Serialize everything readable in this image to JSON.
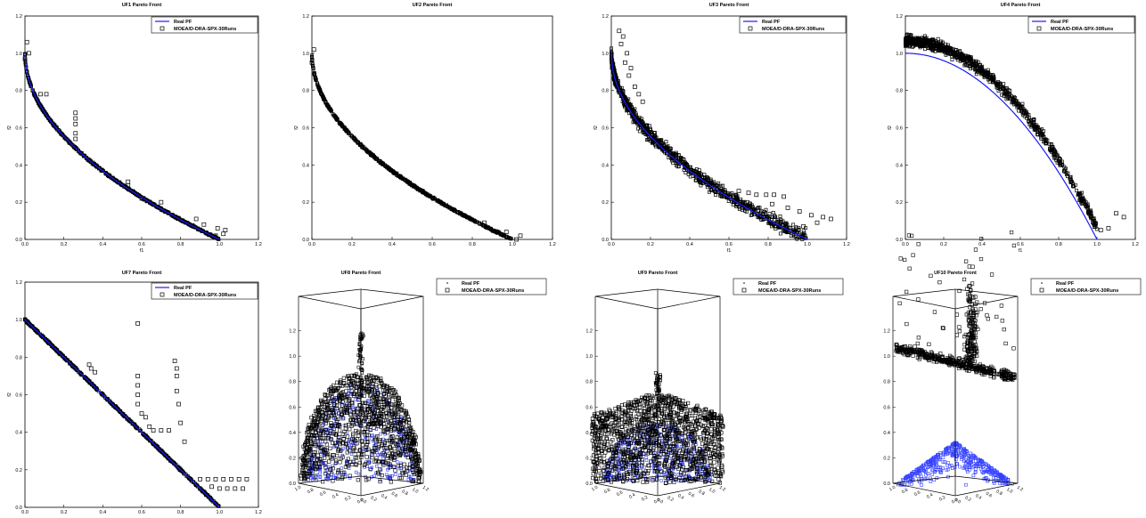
{
  "figure": {
    "legend": {
      "real": "Real PF",
      "moea": "MOEA/D-DRA-SPX-30Runs"
    },
    "colors": {
      "real": "#1a1aff",
      "moea": "#000000",
      "axis": "#000000",
      "surface": "#3340ff"
    }
  },
  "chart_data": [
    {
      "id": "UF1",
      "type": "scatter",
      "title": "UF1 Pareto Front",
      "xlabel": "f1",
      "ylabel": "f2",
      "xlim": [
        0,
        1.2
      ],
      "ylim": [
        0,
        1.2
      ],
      "xticks": [
        "0.0",
        "0.2",
        "0.4",
        "0.6",
        "0.8",
        "1.0",
        "1.2"
      ],
      "yticks": [
        "0.0",
        "0.2",
        "0.4",
        "0.6",
        "0.8",
        "1.0",
        "1.2"
      ],
      "legend_position": "top-right",
      "series": [
        {
          "name": "Real PF",
          "kind": "line",
          "formula": "f2 = 1 - sqrt(f1)"
        },
        {
          "name": "MOEA/D-DRA-SPX-30Runs",
          "kind": "markers",
          "main_front": "f2 = 1 - sqrt(f1)",
          "outliers": [
            [
              0.01,
              1.06
            ],
            [
              0.02,
              1.0
            ],
            [
              0.0,
              0.97
            ],
            [
              0.08,
              0.78
            ],
            [
              0.11,
              0.78
            ],
            [
              0.26,
              0.68
            ],
            [
              0.26,
              0.65
            ],
            [
              0.26,
              0.62
            ],
            [
              0.26,
              0.57
            ],
            [
              0.26,
              0.54
            ],
            [
              0.53,
              0.31
            ],
            [
              0.53,
              0.29
            ],
            [
              0.6,
              0.22
            ],
            [
              0.7,
              0.2
            ],
            [
              0.88,
              0.11
            ],
            [
              0.92,
              0.08
            ],
            [
              0.99,
              0.06
            ],
            [
              1.03,
              0.05
            ],
            [
              1.02,
              0.03
            ],
            [
              0.98,
              0.02
            ]
          ]
        }
      ]
    },
    {
      "id": "UF2",
      "type": "scatter",
      "title": "UF2 Pareto Front",
      "xlabel": "",
      "ylabel": "f2",
      "xlim": [
        0,
        1.2
      ],
      "ylim": [
        0,
        1.2
      ],
      "xticks": [
        "0.0",
        "0.2",
        "0.4",
        "0.6",
        "0.8",
        "1.0",
        "1.2"
      ],
      "yticks": [
        "0.0",
        "0.2",
        "0.4",
        "0.6",
        "0.8",
        "1.0",
        "1.2"
      ],
      "legend_position": "none",
      "series": [
        {
          "name": "MOEA/D-DRA-SPX-30Runs",
          "kind": "markers",
          "main_front": "f2 = 1 - sqrt(f1)",
          "outliers": [
            [
              0.01,
              1.02
            ],
            [
              0.0,
              0.95
            ],
            [
              0.74,
              0.14
            ],
            [
              0.86,
              0.09
            ],
            [
              0.97,
              0.04
            ],
            [
              1.04,
              0.02
            ],
            [
              1.02,
              0.0
            ]
          ]
        }
      ]
    },
    {
      "id": "UF3",
      "type": "scatter",
      "title": "UF3 Pareto Front",
      "xlabel": "f1",
      "ylabel": "f2",
      "xlim": [
        0,
        1.2
      ],
      "ylim": [
        0,
        1.2
      ],
      "xticks": [
        "0.0",
        "0.2",
        "0.4",
        "0.6",
        "0.8",
        "1.0",
        "1.2"
      ],
      "yticks": [
        "0.0",
        "0.2",
        "0.4",
        "0.6",
        "0.8",
        "1.0",
        "1.2"
      ],
      "legend_position": "top-right",
      "series": [
        {
          "name": "Real PF",
          "kind": "line",
          "formula": "f2 = 1 - sqrt(f1)"
        },
        {
          "name": "MOEA/D-DRA-SPX-30Runs",
          "kind": "markers",
          "main_front": "f2 = 1 - sqrt(f1)",
          "spread": 0.05,
          "outliers": [
            [
              0.04,
              1.12
            ],
            [
              0.06,
              1.09
            ],
            [
              0.05,
              1.05
            ],
            [
              0.08,
              1.0
            ],
            [
              0.07,
              0.95
            ],
            [
              0.1,
              0.92
            ],
            [
              0.09,
              0.88
            ],
            [
              0.12,
              0.82
            ],
            [
              0.14,
              0.78
            ],
            [
              0.16,
              0.74
            ],
            [
              0.65,
              0.26
            ],
            [
              0.7,
              0.25
            ],
            [
              0.74,
              0.24
            ],
            [
              0.79,
              0.24
            ],
            [
              0.83,
              0.24
            ],
            [
              0.88,
              0.23
            ],
            [
              0.82,
              0.19
            ],
            [
              0.9,
              0.17
            ],
            [
              0.96,
              0.15
            ],
            [
              1.02,
              0.13
            ],
            [
              1.08,
              0.12
            ],
            [
              1.12,
              0.11
            ],
            [
              1.05,
              0.09
            ],
            [
              0.98,
              0.07
            ]
          ]
        }
      ]
    },
    {
      "id": "UF4",
      "type": "scatter",
      "title": "UF4 Pareto Front",
      "xlabel": "f1",
      "ylabel": "f2",
      "xlim": [
        0,
        1.2
      ],
      "ylim": [
        0,
        1.2
      ],
      "xticks": [
        "0.0",
        "0.2",
        "0.4",
        "0.6",
        "0.8",
        "1.0",
        "1.2"
      ],
      "yticks": [
        "0.0",
        "0.2",
        "0.4",
        "0.6",
        "0.8",
        "1.0",
        "1.2"
      ],
      "legend_position": "top-right",
      "series": [
        {
          "name": "Real PF",
          "kind": "line",
          "formula": "f2 = 1 - f1^2"
        },
        {
          "name": "MOEA/D-DRA-SPX-30Runs",
          "kind": "markers",
          "main_front": "f2 = 1.06 - f1^2 (approx.)",
          "spread": 0.04,
          "outliers": [
            [
              0.05,
              1.05
            ],
            [
              0.08,
              1.07
            ],
            [
              0.1,
              1.08
            ],
            [
              1.02,
              0.05
            ],
            [
              1.06,
              0.06
            ],
            [
              1.1,
              0.14
            ],
            [
              1.14,
              0.12
            ]
          ]
        }
      ]
    },
    {
      "id": "UF7",
      "type": "scatter",
      "title": "UF7 Pareto Front",
      "xlabel": "",
      "ylabel": "f2",
      "xlim": [
        0,
        1.2
      ],
      "ylim": [
        0,
        1.2
      ],
      "xticks": [
        "0.0",
        "0.2",
        "0.4",
        "0.6",
        "0.8",
        "1.0",
        "1.2"
      ],
      "yticks": [
        "0.0",
        "0.2",
        "0.4",
        "0.6",
        "0.8",
        "1.0",
        "1.2"
      ],
      "legend_position": "top-right",
      "series": [
        {
          "name": "Real PF",
          "kind": "line",
          "formula": "f2 = 1 - f1"
        },
        {
          "name": "MOEA/D-DRA-SPX-30Runs",
          "kind": "markers",
          "main_front": "f2 = 1 - f1",
          "outliers": [
            [
              0.33,
              0.76
            ],
            [
              0.34,
              0.74
            ],
            [
              0.36,
              0.72
            ],
            [
              0.58,
              0.98
            ],
            [
              0.58,
              0.7
            ],
            [
              0.58,
              0.65
            ],
            [
              0.58,
              0.6
            ],
            [
              0.58,
              0.55
            ],
            [
              0.6,
              0.5
            ],
            [
              0.62,
              0.48
            ],
            [
              0.64,
              0.43
            ],
            [
              0.66,
              0.41
            ],
            [
              0.7,
              0.41
            ],
            [
              0.74,
              0.41
            ],
            [
              0.77,
              0.78
            ],
            [
              0.78,
              0.74
            ],
            [
              0.78,
              0.7
            ],
            [
              0.78,
              0.62
            ],
            [
              0.79,
              0.55
            ],
            [
              0.8,
              0.45
            ],
            [
              0.82,
              0.35
            ],
            [
              0.9,
              0.15
            ],
            [
              0.94,
              0.15
            ],
            [
              0.98,
              0.15
            ],
            [
              1.02,
              0.15
            ],
            [
              1.06,
              0.15
            ],
            [
              1.1,
              0.15
            ],
            [
              1.14,
              0.15
            ],
            [
              0.96,
              0.11
            ],
            [
              1.0,
              0.1
            ],
            [
              1.04,
              0.1
            ],
            [
              1.08,
              0.1
            ],
            [
              1.12,
              0.1
            ]
          ]
        }
      ]
    },
    {
      "id": "UF8",
      "type": "scatter",
      "title": "UF8 Pareto Front",
      "dimensions": 3,
      "zticks": [
        "0.0",
        "0.2",
        "0.4",
        "0.6",
        "0.8",
        "1.0",
        "1.2"
      ],
      "floor_ticks_left": [
        "1.0",
        "0.8",
        "0.6",
        "0.4",
        "0.2",
        "0.0"
      ],
      "floor_ticks_right": [
        "0.0",
        "0.2",
        "0.4",
        "0.6",
        "0.8",
        "1.0",
        "1.2"
      ],
      "legend_position": "top-right",
      "series": [
        {
          "name": "Real PF",
          "kind": "surface",
          "formula": "f1^2 + f2^2 + f3^2 = 1"
        },
        {
          "name": "MOEA/D-DRA-SPX-30Runs",
          "kind": "markers"
        }
      ]
    },
    {
      "id": "UF9",
      "type": "scatter",
      "title": "UF9 Pareto Front",
      "dimensions": 3,
      "zticks": [
        "0.0",
        "0.2",
        "0.4",
        "0.6",
        "0.8",
        "1.0",
        "1.2"
      ],
      "floor_ticks_left": [
        "1.0",
        "0.8",
        "0.6",
        "0.4",
        "0.2",
        "0.0"
      ],
      "floor_ticks_right": [
        "0.0",
        "0.2",
        "0.4",
        "0.6",
        "0.8",
        "1.0",
        "1.2"
      ],
      "legend_position": "top-right",
      "series": [
        {
          "name": "Real PF",
          "kind": "surface"
        },
        {
          "name": "MOEA/D-DRA-SPX-30Runs",
          "kind": "markers"
        }
      ]
    },
    {
      "id": "UF10",
      "type": "scatter",
      "title": "UF10 Pareto Front",
      "dimensions": 3,
      "zticks": [
        "0.0",
        "0.2",
        "0.4",
        "0.6",
        "0.8",
        "1.0",
        "1.2"
      ],
      "floor_ticks_left": [
        "1.0",
        "0.8",
        "0.6",
        "0.4",
        "0.2",
        "0.0"
      ],
      "floor_ticks_right": [
        "0.0",
        "0.2",
        "0.4",
        "0.6",
        "0.8",
        "1.0",
        "1.2"
      ],
      "legend_position": "top-right",
      "series": [
        {
          "name": "Real PF",
          "kind": "surface",
          "formula": "f1^2 + f2^2 + f3^2 = 1"
        },
        {
          "name": "MOEA/D-DRA-SPX-30Runs",
          "kind": "markers"
        }
      ]
    }
  ]
}
